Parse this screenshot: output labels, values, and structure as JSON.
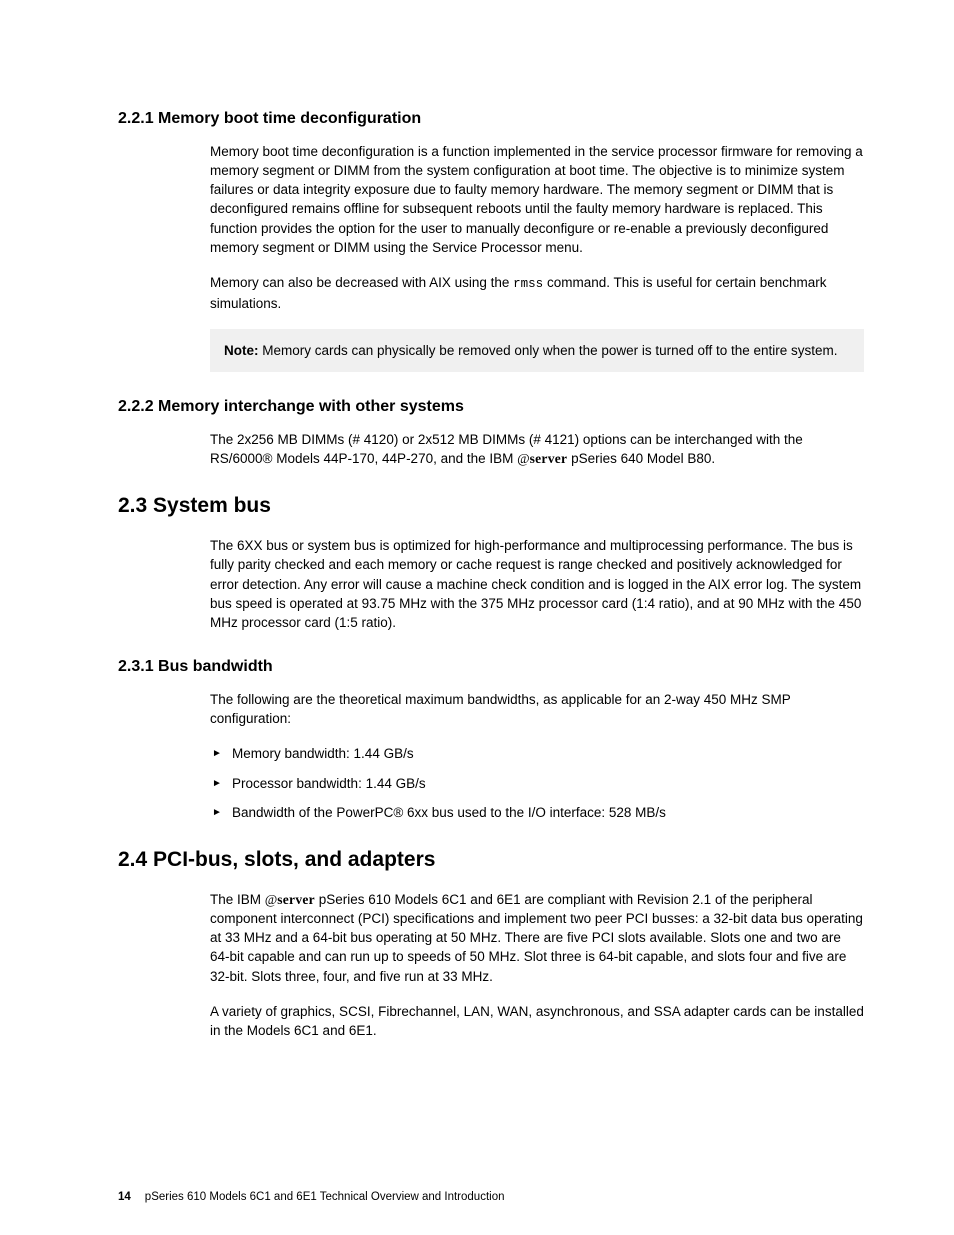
{
  "sections": {
    "s221": {
      "heading": "2.2.1  Memory boot time deconfiguration",
      "p1": "Memory boot time deconfiguration is a function implemented in the service processor firmware for removing a memory segment or DIMM from the system configuration at boot time. The objective is to minimize system failures or data integrity exposure due to faulty memory hardware. The memory segment or DIMM that is deconfigured remains offline for subsequent reboots until the faulty memory hardware is replaced. This function provides the option for the user to manually deconfigure or re-enable a previously deconfigured memory segment or DIMM using the Service Processor menu.",
      "p2_a": "Memory can also be decreased with AIX using the ",
      "p2_cmd": "rmss",
      "p2_b": " command. This is useful for certain benchmark simulations.",
      "note_label": "Note: ",
      "note_text": "Memory cards can physically be removed only when the power is turned off to the entire system."
    },
    "s222": {
      "heading": "2.2.2  Memory interchange with other systems",
      "p1_a": "The 2x256 MB DIMMs (# 4120) or 2x512 MB DIMMs (# 4121) options can be interchanged with the RS/6000® Models 44P-170, 44P-270, and the IBM ",
      "p1_b": " pSeries 640 Model B80."
    },
    "s23": {
      "heading": "2.3  System bus",
      "p1": "The 6XX bus or system bus is optimized for high-performance and multiprocessing performance. The bus is fully parity checked and each memory or cache request is range checked and positively acknowledged for error detection. Any error will cause a machine check condition and is logged in the AIX error log. The system bus speed is operated at 93.75 MHz with the 375 MHz processor card (1:4 ratio), and at 90 MHz with the 450 MHz processor card (1:5 ratio)."
    },
    "s231": {
      "heading": "2.3.1  Bus bandwidth",
      "p1": "The following are the theoretical maximum bandwidths, as applicable for an 2-way 450 MHz SMP configuration:",
      "bullets": [
        "Memory bandwidth: 1.44 GB/s",
        "Processor bandwidth: 1.44 GB/s",
        "Bandwidth of the PowerPC® 6xx bus used to the I/O interface: 528 MB/s"
      ]
    },
    "s24": {
      "heading": "2.4  PCI-bus, slots, and adapters",
      "p1_a": "The IBM ",
      "p1_b": " pSeries 610 Models 6C1 and 6E1 are compliant with Revision 2.1 of the peripheral component interconnect (PCI) specifications and implement two peer PCI busses: a 32-bit data bus operating at 33 MHz and a 64-bit bus operating at 50 MHz. There are five PCI slots available. Slots one and two are 64-bit capable and can run up to speeds of 50 MHz. Slot three is 64-bit capable, and slots four and five are 32-bit. Slots three, four, and five run at 33 MHz.",
      "p2": "A variety of graphics, SCSI, Fibrechannel, LAN, WAN, asynchronous, and SSA adapter cards can be installed in the Models 6C1 and 6E1."
    }
  },
  "eserver": {
    "at": "@",
    "word": "server"
  },
  "footer": {
    "page": "14",
    "title": "pSeries 610 Models 6C1 and 6E1 Technical Overview and Introduction"
  }
}
